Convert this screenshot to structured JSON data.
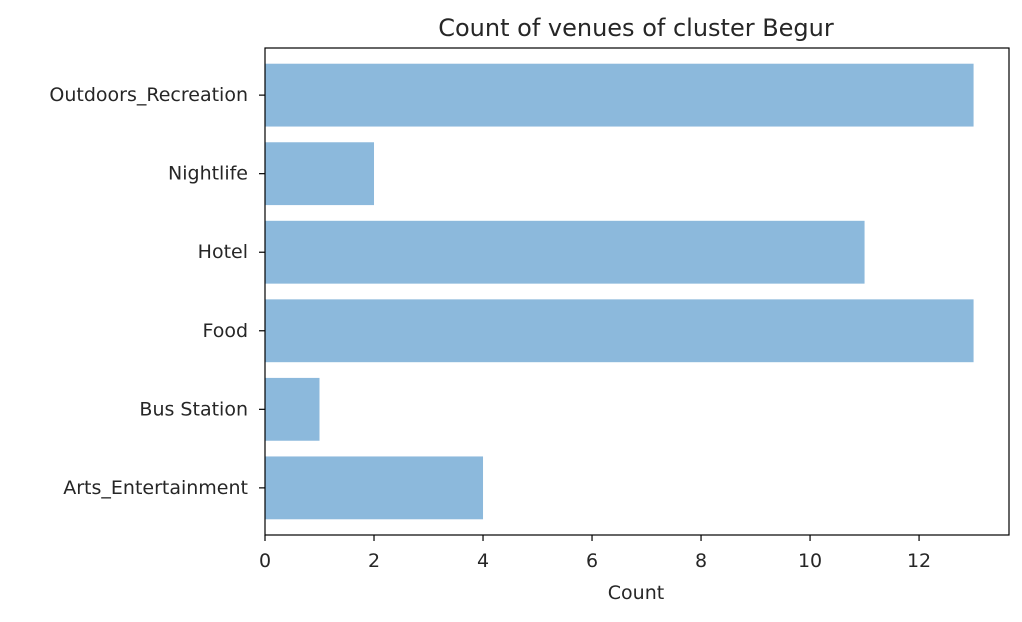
{
  "chart_data": {
    "type": "bar",
    "orientation": "horizontal",
    "title": "Count of venues of cluster Begur",
    "xlabel": "Count",
    "ylabel": "",
    "categories": [
      "Arts_Entertainment",
      "Bus Station",
      "Food",
      "Hotel",
      "Nightlife",
      "Outdoors_Recreation"
    ],
    "values": [
      4,
      1,
      13,
      11,
      2,
      13
    ],
    "xlim": [
      0,
      13.65
    ],
    "xticks": [
      "0",
      "2",
      "4",
      "6",
      "8",
      "10",
      "12"
    ],
    "bar_color": "#8cb9dc",
    "grid": false,
    "legend": "none"
  }
}
